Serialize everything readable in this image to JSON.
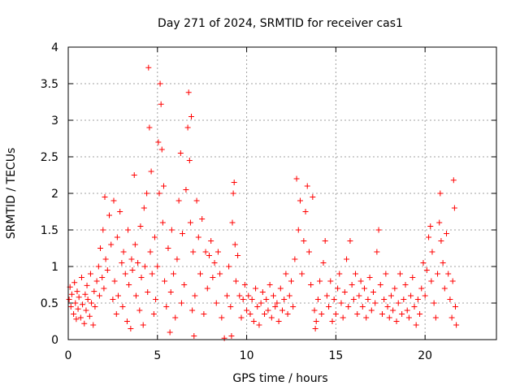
{
  "chart_data": {
    "type": "scatter",
    "title": "Day 271 of 2024, SRMTID for receiver cas1",
    "xlabel": "GPS time / hours",
    "ylabel": "SRMTID / TECUs",
    "xlim": [
      0,
      24
    ],
    "ylim": [
      0,
      4
    ],
    "xticks": [
      0,
      5,
      10,
      15,
      20
    ],
    "xtick_labels": [
      "0",
      "5",
      "10",
      "15",
      "20"
    ],
    "yticks": [
      0,
      0.5,
      1,
      1.5,
      2,
      2.5,
      3,
      3.5,
      4
    ],
    "ytick_labels": [
      "0",
      "0.5",
      "1",
      "1.5",
      "2",
      "2.5",
      "3",
      "3.5",
      "4"
    ],
    "grid": true,
    "marker": "+",
    "color": "#ff0000",
    "series": [
      {
        "name": "SRMTID",
        "points": [
          [
            0.05,
            0.55
          ],
          [
            0.1,
            0.72
          ],
          [
            0.15,
            0.45
          ],
          [
            0.2,
            0.62
          ],
          [
            0.3,
            0.35
          ],
          [
            0.35,
            0.78
          ],
          [
            0.4,
            0.5
          ],
          [
            0.45,
            0.28
          ],
          [
            0.5,
            0.66
          ],
          [
            0.55,
            0.42
          ],
          [
            0.6,
            0.58
          ],
          [
            0.7,
            0.3
          ],
          [
            0.75,
            0.85
          ],
          [
            0.8,
            0.48
          ],
          [
            0.9,
            0.22
          ],
          [
            0.95,
            0.62
          ],
          [
            1.0,
            0.4
          ],
          [
            1.05,
            0.74
          ],
          [
            1.1,
            0.55
          ],
          [
            1.2,
            0.32
          ],
          [
            1.25,
            0.9
          ],
          [
            1.3,
            0.5
          ],
          [
            1.4,
            0.2
          ],
          [
            1.45,
            0.66
          ],
          [
            1.5,
            0.45
          ],
          [
            1.6,
            0.8
          ],
          [
            1.7,
            1.0
          ],
          [
            1.75,
            0.6
          ],
          [
            1.8,
            1.25
          ],
          [
            1.9,
            0.85
          ],
          [
            1.95,
            1.5
          ],
          [
            2.0,
            0.7
          ],
          [
            2.05,
            1.95
          ],
          [
            2.1,
            1.1
          ],
          [
            2.2,
            0.95
          ],
          [
            2.3,
            1.7
          ],
          [
            2.4,
            1.3
          ],
          [
            2.5,
            0.55
          ],
          [
            2.55,
            1.9
          ],
          [
            2.6,
            0.8
          ],
          [
            2.7,
            0.35
          ],
          [
            2.75,
            1.4
          ],
          [
            2.8,
            0.6
          ],
          [
            2.9,
            1.75
          ],
          [
            3.0,
            1.05
          ],
          [
            3.05,
            0.45
          ],
          [
            3.1,
            1.2
          ],
          [
            3.2,
            0.9
          ],
          [
            3.3,
            0.25
          ],
          [
            3.35,
            1.5
          ],
          [
            3.4,
            0.75
          ],
          [
            3.5,
            0.15
          ],
          [
            3.55,
            1.1
          ],
          [
            3.6,
            0.95
          ],
          [
            3.7,
            2.25
          ],
          [
            3.75,
            1.3
          ],
          [
            3.8,
            0.6
          ],
          [
            3.9,
            1.05
          ],
          [
            4.0,
            0.4
          ],
          [
            4.05,
            1.55
          ],
          [
            4.1,
            0.85
          ],
          [
            4.2,
            0.2
          ],
          [
            4.25,
            1.8
          ],
          [
            4.3,
            1.0
          ],
          [
            4.4,
            2.0
          ],
          [
            4.45,
            0.65
          ],
          [
            4.5,
            3.72
          ],
          [
            4.55,
            2.9
          ],
          [
            4.6,
            1.2
          ],
          [
            4.65,
            2.3
          ],
          [
            4.7,
            0.9
          ],
          [
            4.8,
            0.35
          ],
          [
            4.85,
            1.4
          ],
          [
            4.9,
            0.55
          ],
          [
            5.0,
            1.0
          ],
          [
            5.05,
            2.7
          ],
          [
            5.1,
            2.0
          ],
          [
            5.15,
            3.5
          ],
          [
            5.2,
            3.22
          ],
          [
            5.25,
            2.6
          ],
          [
            5.3,
            1.6
          ],
          [
            5.35,
            2.1
          ],
          [
            5.4,
            0.8
          ],
          [
            5.5,
            0.45
          ],
          [
            5.6,
            1.25
          ],
          [
            5.7,
            0.1
          ],
          [
            5.75,
            0.65
          ],
          [
            5.8,
            1.5
          ],
          [
            5.9,
            0.9
          ],
          [
            6.0,
            0.3
          ],
          [
            6.1,
            1.1
          ],
          [
            6.2,
            1.9
          ],
          [
            6.3,
            2.55
          ],
          [
            6.35,
            0.5
          ],
          [
            6.4,
            1.45
          ],
          [
            6.5,
            0.75
          ],
          [
            6.6,
            2.05
          ],
          [
            6.7,
            2.9
          ],
          [
            6.75,
            3.38
          ],
          [
            6.8,
            2.45
          ],
          [
            6.85,
            1.6
          ],
          [
            6.9,
            3.05
          ],
          [
            6.95,
            0.4
          ],
          [
            7.0,
            1.2
          ],
          [
            7.05,
            0.05
          ],
          [
            7.1,
            0.6
          ],
          [
            7.2,
            1.9
          ],
          [
            7.3,
            1.4
          ],
          [
            7.4,
            0.9
          ],
          [
            7.5,
            1.65
          ],
          [
            7.6,
            0.35
          ],
          [
            7.7,
            1.2
          ],
          [
            7.8,
            0.7
          ],
          [
            7.9,
            1.15
          ],
          [
            8.0,
            1.35
          ],
          [
            8.1,
            0.85
          ],
          [
            8.2,
            1.05
          ],
          [
            8.3,
            0.5
          ],
          [
            8.4,
            1.2
          ],
          [
            8.5,
            0.9
          ],
          [
            8.6,
            0.3
          ],
          [
            8.75,
            0.02
          ],
          [
            8.9,
            0.6
          ],
          [
            9.0,
            1.0
          ],
          [
            9.1,
            0.45
          ],
          [
            9.15,
            0.05
          ],
          [
            9.2,
            1.6
          ],
          [
            9.25,
            2.0
          ],
          [
            9.3,
            2.15
          ],
          [
            9.35,
            1.3
          ],
          [
            9.4,
            0.8
          ],
          [
            9.5,
            1.15
          ],
          [
            9.6,
            0.6
          ],
          [
            9.7,
            0.3
          ],
          [
            9.8,
            0.55
          ],
          [
            9.9,
            0.75
          ],
          [
            10.0,
            0.4
          ],
          [
            10.1,
            0.6
          ],
          [
            10.2,
            0.35
          ],
          [
            10.3,
            0.55
          ],
          [
            10.4,
            0.25
          ],
          [
            10.5,
            0.7
          ],
          [
            10.6,
            0.45
          ],
          [
            10.7,
            0.2
          ],
          [
            10.8,
            0.5
          ],
          [
            10.9,
            0.65
          ],
          [
            11.0,
            0.35
          ],
          [
            11.1,
            0.55
          ],
          [
            11.2,
            0.4
          ],
          [
            11.3,
            0.75
          ],
          [
            11.4,
            0.3
          ],
          [
            11.5,
            0.6
          ],
          [
            11.6,
            0.45
          ],
          [
            11.7,
            0.5
          ],
          [
            11.8,
            0.25
          ],
          [
            11.9,
            0.7
          ],
          [
            12.0,
            0.4
          ],
          [
            12.1,
            0.55
          ],
          [
            12.2,
            0.9
          ],
          [
            12.3,
            0.35
          ],
          [
            12.4,
            0.6
          ],
          [
            12.5,
            0.8
          ],
          [
            12.6,
            0.45
          ],
          [
            12.7,
            1.1
          ],
          [
            12.8,
            2.2
          ],
          [
            12.9,
            1.5
          ],
          [
            13.0,
            1.9
          ],
          [
            13.1,
            0.9
          ],
          [
            13.2,
            1.35
          ],
          [
            13.3,
            1.75
          ],
          [
            13.4,
            2.1
          ],
          [
            13.5,
            1.2
          ],
          [
            13.6,
            0.75
          ],
          [
            13.7,
            1.95
          ],
          [
            13.8,
            0.4
          ],
          [
            13.85,
            0.15
          ],
          [
            13.9,
            0.25
          ],
          [
            14.0,
            0.55
          ],
          [
            14.1,
            0.8
          ],
          [
            14.2,
            0.35
          ],
          [
            14.3,
            1.05
          ],
          [
            14.4,
            1.35
          ],
          [
            14.5,
            0.6
          ],
          [
            14.6,
            0.45
          ],
          [
            14.7,
            0.8
          ],
          [
            14.8,
            0.25
          ],
          [
            14.9,
            0.55
          ],
          [
            15.0,
            0.35
          ],
          [
            15.1,
            0.7
          ],
          [
            15.2,
            0.9
          ],
          [
            15.3,
            0.5
          ],
          [
            15.4,
            0.3
          ],
          [
            15.5,
            0.65
          ],
          [
            15.6,
            1.1
          ],
          [
            15.7,
            0.45
          ],
          [
            15.8,
            1.35
          ],
          [
            15.9,
            0.75
          ],
          [
            16.0,
            0.55
          ],
          [
            16.1,
            0.9
          ],
          [
            16.2,
            0.35
          ],
          [
            16.3,
            0.6
          ],
          [
            16.4,
            0.8
          ],
          [
            16.5,
            0.45
          ],
          [
            16.6,
            0.7
          ],
          [
            16.7,
            0.3
          ],
          [
            16.8,
            0.55
          ],
          [
            16.9,
            0.85
          ],
          [
            17.0,
            0.4
          ],
          [
            17.1,
            0.65
          ],
          [
            17.2,
            0.5
          ],
          [
            17.3,
            1.2
          ],
          [
            17.4,
            1.5
          ],
          [
            17.5,
            0.75
          ],
          [
            17.6,
            0.35
          ],
          [
            17.7,
            0.55
          ],
          [
            17.8,
            0.9
          ],
          [
            17.9,
            0.45
          ],
          [
            18.0,
            0.3
          ],
          [
            18.1,
            0.6
          ],
          [
            18.2,
            0.4
          ],
          [
            18.3,
            0.7
          ],
          [
            18.4,
            0.25
          ],
          [
            18.5,
            0.5
          ],
          [
            18.6,
            0.9
          ],
          [
            18.7,
            0.35
          ],
          [
            18.8,
            0.55
          ],
          [
            18.9,
            0.75
          ],
          [
            19.0,
            0.4
          ],
          [
            19.1,
            0.3
          ],
          [
            19.2,
            0.6
          ],
          [
            19.3,
            0.85
          ],
          [
            19.4,
            0.45
          ],
          [
            19.5,
            0.2
          ],
          [
            19.6,
            0.55
          ],
          [
            19.7,
            0.35
          ],
          [
            19.8,
            0.7
          ],
          [
            19.9,
            1.05
          ],
          [
            20.0,
            0.6
          ],
          [
            20.1,
            0.95
          ],
          [
            20.2,
            1.4
          ],
          [
            20.3,
            1.55
          ],
          [
            20.35,
            0.8
          ],
          [
            20.4,
            1.2
          ],
          [
            20.5,
            0.5
          ],
          [
            20.6,
            0.3
          ],
          [
            20.7,
            0.9
          ],
          [
            20.8,
            1.6
          ],
          [
            20.85,
            2.0
          ],
          [
            20.9,
            1.35
          ],
          [
            21.0,
            1.05
          ],
          [
            21.1,
            0.7
          ],
          [
            21.2,
            1.45
          ],
          [
            21.3,
            0.9
          ],
          [
            21.4,
            0.55
          ],
          [
            21.5,
            0.3
          ],
          [
            21.55,
            0.8
          ],
          [
            21.6,
            2.18
          ],
          [
            21.65,
            1.8
          ],
          [
            21.7,
            0.45
          ],
          [
            21.75,
            0.2
          ]
        ]
      }
    ]
  }
}
